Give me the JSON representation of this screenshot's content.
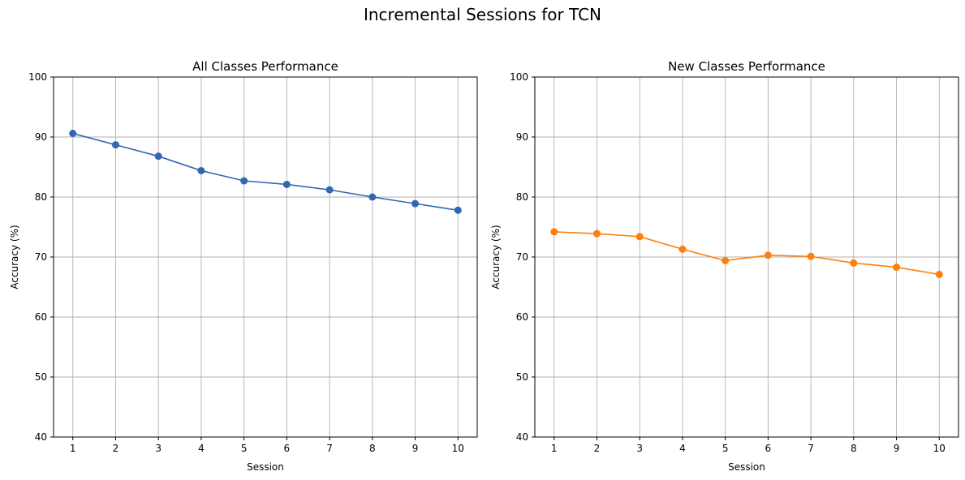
{
  "figure": {
    "title": "Incremental Sessions for TCN"
  },
  "chart_data": [
    {
      "type": "line",
      "title": "All Classes Performance",
      "xlabel": "Session",
      "ylabel": "Accuracy (%)",
      "x": [
        1,
        2,
        3,
        4,
        5,
        6,
        7,
        8,
        9,
        10
      ],
      "xticks": [
        "1",
        "2",
        "3",
        "4",
        "5",
        "6",
        "7",
        "8",
        "9",
        "10"
      ],
      "yticks": [
        "40",
        "50",
        "60",
        "70",
        "80",
        "90",
        "100"
      ],
      "ylim": [
        40,
        100
      ],
      "xlim": [
        0.55,
        10.45
      ],
      "grid": true,
      "marker": "circle",
      "color": "#3366b0",
      "series": [
        {
          "values": [
            90.6,
            88.7,
            86.8,
            84.4,
            82.7,
            82.1,
            81.2,
            80.0,
            78.9,
            77.8
          ]
        }
      ]
    },
    {
      "type": "line",
      "title": "New Classes Performance",
      "xlabel": "Session",
      "ylabel": "Accuracy (%)",
      "x": [
        1,
        2,
        3,
        4,
        5,
        6,
        7,
        8,
        9,
        10
      ],
      "xticks": [
        "1",
        "2",
        "3",
        "4",
        "5",
        "6",
        "7",
        "8",
        "9",
        "10"
      ],
      "yticks": [
        "40",
        "50",
        "60",
        "70",
        "80",
        "90",
        "100"
      ],
      "ylim": [
        40,
        100
      ],
      "xlim": [
        0.55,
        10.45
      ],
      "grid": true,
      "marker": "circle",
      "color": "#ff7f0e",
      "series": [
        {
          "values": [
            74.2,
            73.9,
            73.4,
            71.3,
            69.4,
            70.3,
            70.1,
            69.0,
            68.3,
            67.1
          ]
        }
      ]
    }
  ]
}
